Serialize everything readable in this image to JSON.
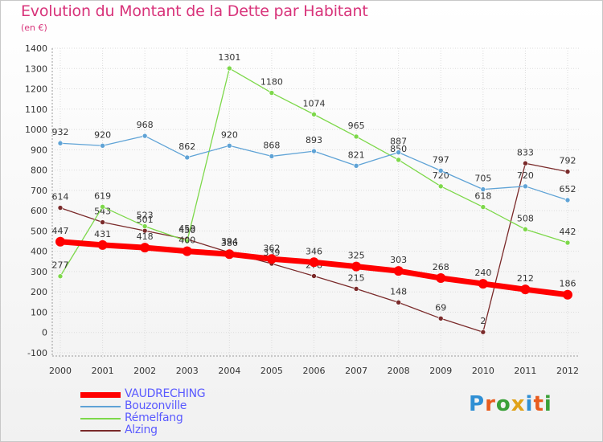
{
  "header": {
    "title": "Evolution du Montant de la Dette par Habitant",
    "subtitle": "(en €)"
  },
  "logo": {
    "text": "Proxiti",
    "colors": [
      "#2f8fd4",
      "#e85c1e",
      "#3aa038",
      "#e0a21a",
      "#2f8fd4",
      "#e85c1e",
      "#3aa038"
    ]
  },
  "chart_data": {
    "type": "line",
    "x": [
      2000,
      2001,
      2002,
      2003,
      2004,
      2005,
      2006,
      2007,
      2008,
      2009,
      2010,
      2011,
      2012
    ],
    "ylim": [
      -100,
      1400
    ],
    "yticks": [
      -100,
      0,
      100,
      200,
      300,
      400,
      500,
      600,
      700,
      800,
      900,
      1000,
      1100,
      1200,
      1300,
      1400
    ],
    "grid": true,
    "legend_position": "bottom-left",
    "series": [
      {
        "name": "VAUDRECHING",
        "color": "#ff0000",
        "width": 7,
        "values": [
          447,
          431,
          418,
          400,
          386,
          362,
          346,
          325,
          303,
          268,
          240,
          212,
          186
        ]
      },
      {
        "name": "Bouzonville",
        "color": "#5fa3d6",
        "width": 1.3,
        "values": [
          932,
          920,
          968,
          862,
          920,
          868,
          893,
          821,
          887,
          797,
          705,
          720,
          652
        ]
      },
      {
        "name": "Rémelfang",
        "color": "#7dd84a",
        "width": 1.3,
        "values": [
          277,
          619,
          523,
          450,
          1301,
          1180,
          1074,
          965,
          850,
          720,
          618,
          508,
          442
        ]
      },
      {
        "name": "Alzing",
        "color": "#7a2a2a",
        "width": 1.3,
        "values": [
          614,
          543,
          501,
          459,
          394,
          339,
          278,
          215,
          148,
          69,
          2,
          833,
          792
        ]
      }
    ]
  }
}
